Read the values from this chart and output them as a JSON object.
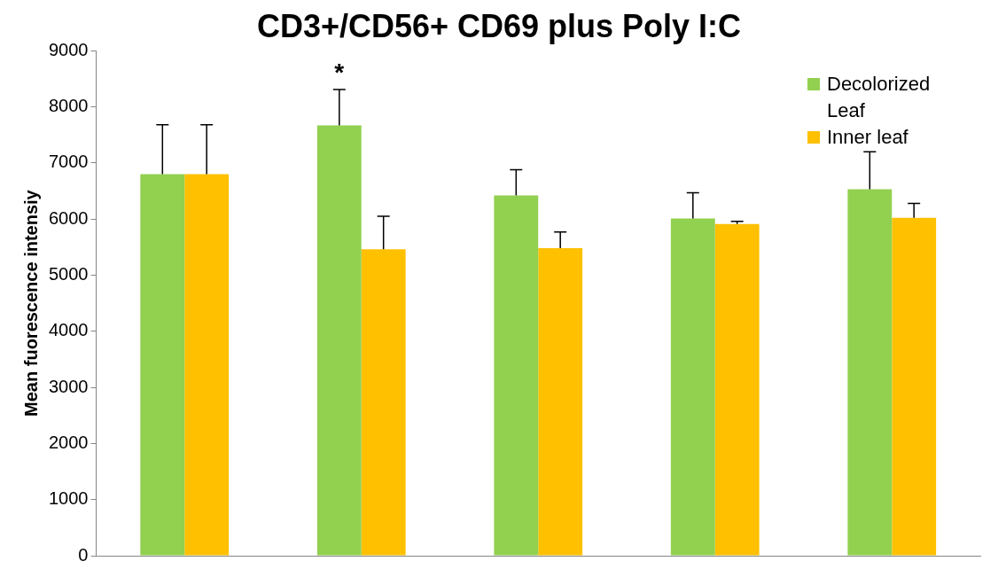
{
  "chart_data": {
    "type": "bar",
    "title": "CD3+/CD56+ CD69 plus Poly I:C",
    "ylabel": "Mean fuorescence intensiy",
    "categories": [
      null,
      null,
      null,
      null,
      null
    ],
    "series": [
      {
        "name": "Decolorized Leaf",
        "color": "#92d050",
        "values": [
          6800,
          7670,
          6420,
          6010,
          6530
        ],
        "errors": [
          [
            6800,
            7680
          ],
          [
            7670,
            8310
          ],
          [
            6420,
            6880
          ],
          [
            6010,
            6470
          ],
          [
            6530,
            7200
          ]
        ]
      },
      {
        "name": "Inner leaf",
        "color": "#ffc000",
        "values": [
          6800,
          5460,
          5480,
          5910,
          6020
        ],
        "errors": [
          [
            6800,
            7680
          ],
          [
            5460,
            6050
          ],
          [
            5480,
            5770
          ],
          [
            5910,
            5960
          ],
          [
            6020,
            6280
          ]
        ]
      }
    ],
    "ylim": [
      0,
      9000
    ],
    "yticks": [
      0,
      1000,
      2000,
      3000,
      4000,
      5000,
      6000,
      7000,
      8000,
      9000
    ],
    "grid": false,
    "legend": "top right",
    "annotations": [
      "*"
    ]
  }
}
